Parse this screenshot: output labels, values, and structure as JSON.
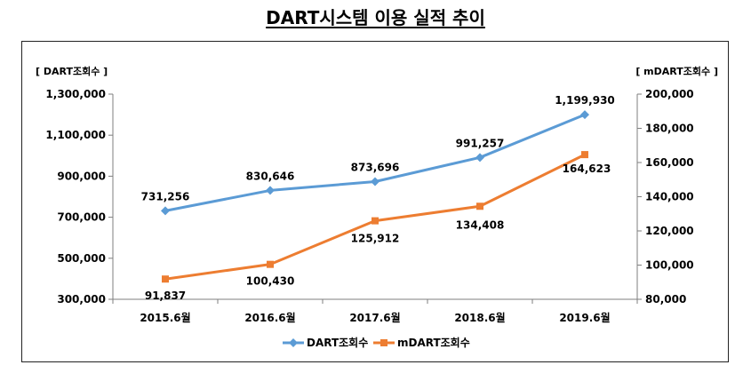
{
  "title": "DART시스템 이용 실적 추이",
  "colors": {
    "dart": "#5b9bd5",
    "mdart": "#ed7d31",
    "axis": "#7f7f7f",
    "grid": "#bfbfbf"
  },
  "chart_data": {
    "type": "line",
    "title": "DART시스템 이용 실적 추이",
    "categories": [
      "2015.6월",
      "2016.6월",
      "2017.6월",
      "2018.6월",
      "2019.6월"
    ],
    "left_axis_label": "[ DART조회수 ]",
    "right_axis_label": "[ mDART조회수 ]",
    "left_ylim": [
      300000,
      1300000
    ],
    "left_ticks": [
      300000,
      500000,
      700000,
      900000,
      1100000,
      1300000
    ],
    "left_tick_labels": [
      "300,000",
      "500,000",
      "700,000",
      "900,000",
      "1,100,000",
      "1,300,000"
    ],
    "right_ylim": [
      80000,
      200000
    ],
    "right_ticks": [
      80000,
      100000,
      120000,
      140000,
      160000,
      180000,
      200000
    ],
    "right_tick_labels": [
      "80,000",
      "100,000",
      "120,000",
      "140,000",
      "160,000",
      "180,000",
      "200,000"
    ],
    "series": [
      {
        "name": "DART조회수",
        "axis": "left",
        "marker": "diamond",
        "values": [
          731256,
          830646,
          873696,
          991257,
          1199930
        ],
        "labels": [
          "731,256",
          "830,646",
          "873,696",
          "991,257",
          "1,199,930"
        ]
      },
      {
        "name": "mDART조회수",
        "axis": "right",
        "marker": "square",
        "values": [
          91837,
          100430,
          125912,
          134408,
          164623
        ],
        "labels": [
          "91,837",
          "100,430",
          "125,912",
          "134,408",
          "164,623"
        ]
      }
    ],
    "legend_position": "bottom"
  }
}
